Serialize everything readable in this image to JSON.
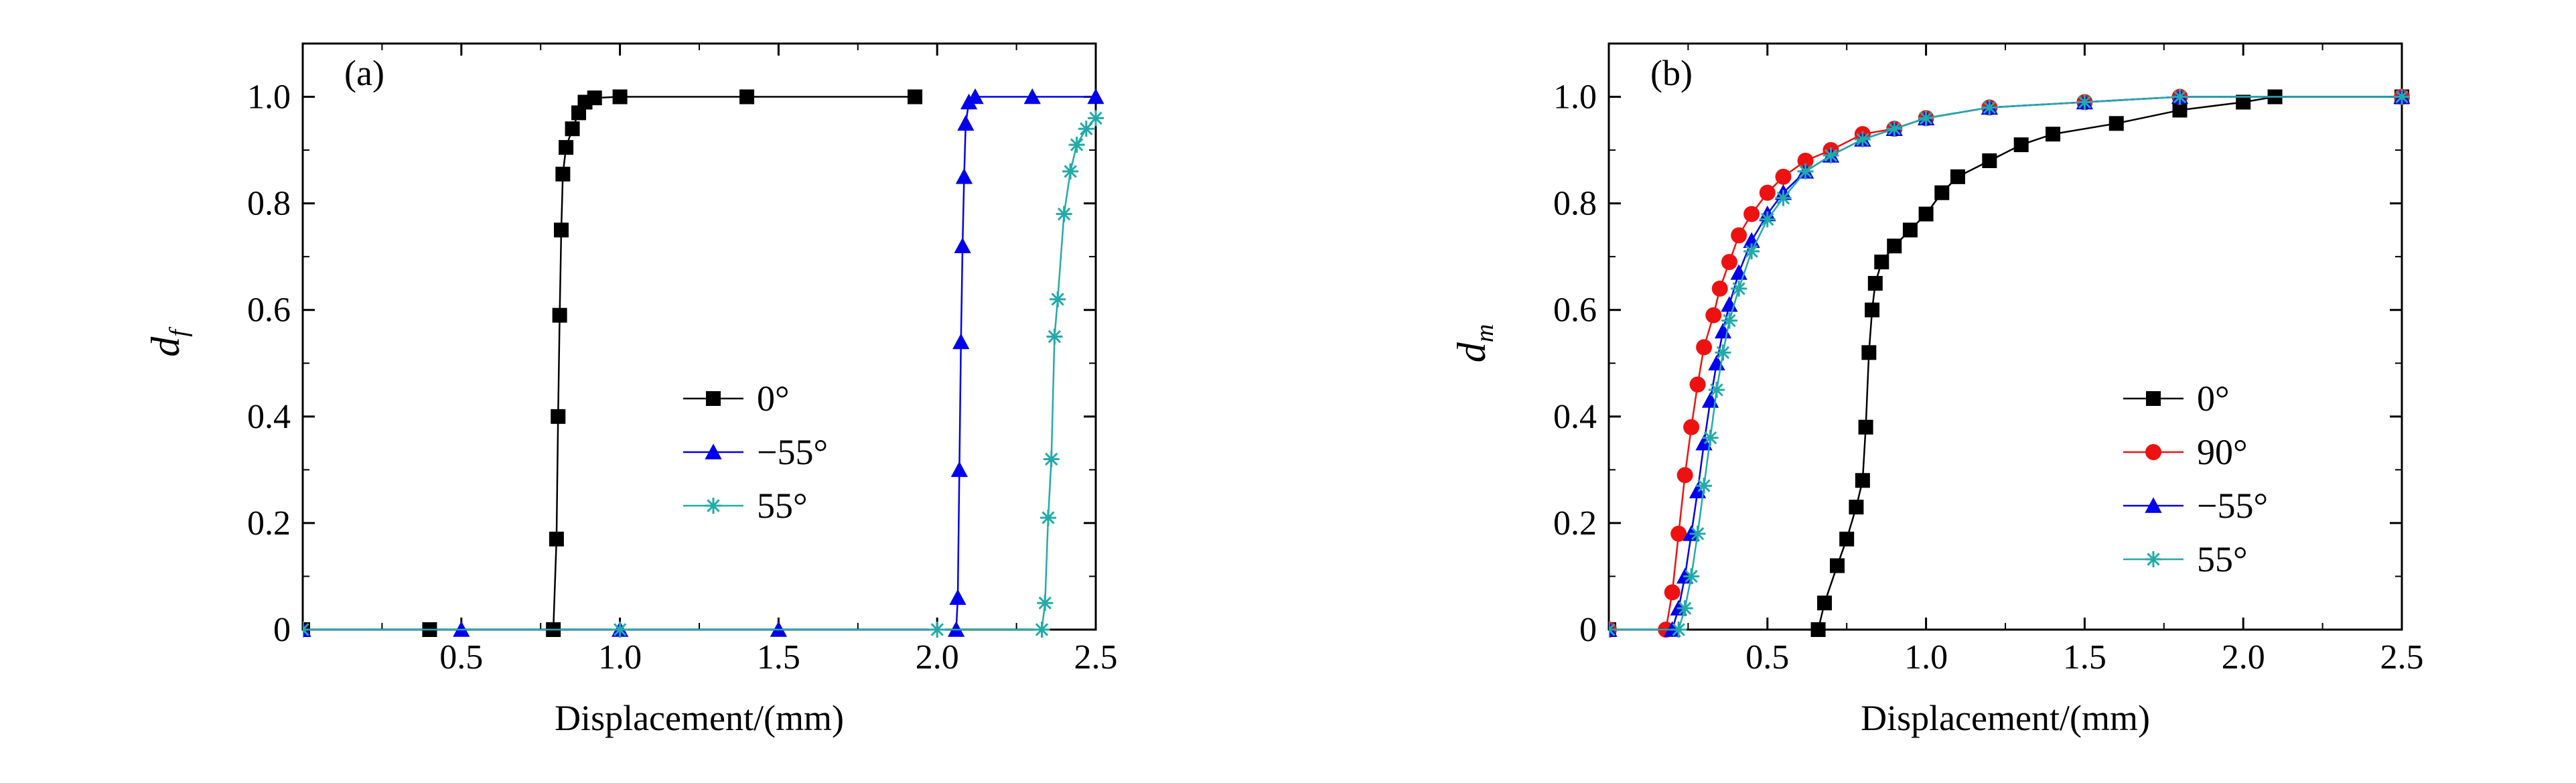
{
  "chart_data": [
    {
      "type": "line",
      "panel_label": "(a)",
      "xlabel": "Displacement/(mm)",
      "ylabel_main": "d",
      "ylabel_sub": "f",
      "xlim": [
        0,
        2.5
      ],
      "ylim": [
        0,
        1.1
      ],
      "x_ticks": [
        0.5,
        1.0,
        1.5,
        2.0,
        2.5
      ],
      "x_tick_labels": [
        "0.5",
        "1.0",
        "1.5",
        "2.0",
        "2.5"
      ],
      "y_ticks": [
        0,
        0.2,
        0.4,
        0.6,
        0.8,
        1.0
      ],
      "y_tick_labels": [
        "0",
        "0.2",
        "0.4",
        "0.6",
        "0.8",
        "1.0"
      ],
      "legend_position": "center",
      "series": [
        {
          "name": "0°",
          "color": "#000000",
          "marker": "square",
          "points": [
            [
              0.0,
              0
            ],
            [
              0.4,
              0
            ],
            [
              0.79,
              0
            ],
            [
              0.8,
              0.17
            ],
            [
              0.805,
              0.4
            ],
            [
              0.81,
              0.59
            ],
            [
              0.815,
              0.75
            ],
            [
              0.82,
              0.855
            ],
            [
              0.83,
              0.905
            ],
            [
              0.85,
              0.94
            ],
            [
              0.87,
              0.97
            ],
            [
              0.89,
              0.99
            ],
            [
              0.92,
              0.998
            ],
            [
              1.0,
              1.0
            ],
            [
              1.4,
              1.0
            ],
            [
              1.93,
              1.0
            ]
          ]
        },
        {
          "name": "−55°",
          "color": "#0000ee",
          "marker": "triangle",
          "points": [
            [
              0.0,
              0
            ],
            [
              0.5,
              0
            ],
            [
              1.0,
              0
            ],
            [
              1.5,
              0
            ],
            [
              2.06,
              0
            ],
            [
              2.065,
              0.06
            ],
            [
              2.07,
              0.3
            ],
            [
              2.075,
              0.54
            ],
            [
              2.08,
              0.72
            ],
            [
              2.085,
              0.85
            ],
            [
              2.09,
              0.95
            ],
            [
              2.1,
              0.99
            ],
            [
              2.12,
              1.0
            ],
            [
              2.3,
              1.0
            ],
            [
              2.5,
              1.0
            ]
          ]
        },
        {
          "name": "55°",
          "color": "#22aaaa",
          "marker": "star",
          "points": [
            [
              0.0,
              0
            ],
            [
              1.0,
              0
            ],
            [
              2.0,
              0
            ],
            [
              2.33,
              0
            ],
            [
              2.34,
              0.05
            ],
            [
              2.35,
              0.21
            ],
            [
              2.36,
              0.32
            ],
            [
              2.37,
              0.55
            ],
            [
              2.38,
              0.62
            ],
            [
              2.4,
              0.78
            ],
            [
              2.42,
              0.86
            ],
            [
              2.44,
              0.91
            ],
            [
              2.47,
              0.94
            ],
            [
              2.5,
              0.96
            ]
          ]
        }
      ]
    },
    {
      "type": "line",
      "panel_label": "(b)",
      "xlabel": "Displacement/(mm)",
      "ylabel_main": "d",
      "ylabel_sub": "m",
      "xlim": [
        0,
        2.5
      ],
      "ylim": [
        0,
        1.1
      ],
      "x_ticks": [
        0.5,
        1.0,
        1.5,
        2.0,
        2.5
      ],
      "x_tick_labels": [
        "0.5",
        "1.0",
        "1.5",
        "2.0",
        "2.5"
      ],
      "y_ticks": [
        0,
        0.2,
        0.4,
        0.6,
        0.8,
        1.0
      ],
      "y_tick_labels": [
        "0",
        "0.2",
        "0.4",
        "0.6",
        "0.8",
        "1.0"
      ],
      "legend_position": "center-right",
      "series": [
        {
          "name": "0°",
          "color": "#000000",
          "marker": "square",
          "points": [
            [
              0.0,
              0
            ],
            [
              0.66,
              0
            ],
            [
              0.68,
              0.05
            ],
            [
              0.72,
              0.12
            ],
            [
              0.75,
              0.17
            ],
            [
              0.78,
              0.23
            ],
            [
              0.8,
              0.28
            ],
            [
              0.81,
              0.38
            ],
            [
              0.82,
              0.52
            ],
            [
              0.83,
              0.6
            ],
            [
              0.84,
              0.65
            ],
            [
              0.86,
              0.69
            ],
            [
              0.9,
              0.72
            ],
            [
              0.95,
              0.75
            ],
            [
              1.0,
              0.78
            ],
            [
              1.05,
              0.82
            ],
            [
              1.1,
              0.85
            ],
            [
              1.2,
              0.88
            ],
            [
              1.3,
              0.91
            ],
            [
              1.4,
              0.93
            ],
            [
              1.6,
              0.95
            ],
            [
              1.8,
              0.975
            ],
            [
              2.0,
              0.99
            ],
            [
              2.1,
              1.0
            ],
            [
              2.5,
              1.0
            ]
          ]
        },
        {
          "name": "90°",
          "color": "#ee1111",
          "marker": "circle",
          "points": [
            [
              0.0,
              0
            ],
            [
              0.18,
              0
            ],
            [
              0.2,
              0.07
            ],
            [
              0.22,
              0.18
            ],
            [
              0.24,
              0.29
            ],
            [
              0.26,
              0.38
            ],
            [
              0.28,
              0.46
            ],
            [
              0.3,
              0.53
            ],
            [
              0.33,
              0.59
            ],
            [
              0.35,
              0.64
            ],
            [
              0.38,
              0.69
            ],
            [
              0.41,
              0.74
            ],
            [
              0.45,
              0.78
            ],
            [
              0.5,
              0.82
            ],
            [
              0.55,
              0.85
            ],
            [
              0.62,
              0.88
            ],
            [
              0.7,
              0.9
            ],
            [
              0.8,
              0.93
            ],
            [
              0.9,
              0.94
            ],
            [
              1.0,
              0.96
            ],
            [
              1.2,
              0.98
            ],
            [
              1.5,
              0.99
            ],
            [
              1.8,
              1.0
            ],
            [
              2.5,
              1.0
            ]
          ]
        },
        {
          "name": "−55°",
          "color": "#0000ee",
          "marker": "triangle",
          "points": [
            [
              0.0,
              0
            ],
            [
              0.2,
              0
            ],
            [
              0.22,
              0.04
            ],
            [
              0.24,
              0.1
            ],
            [
              0.26,
              0.18
            ],
            [
              0.28,
              0.26
            ],
            [
              0.3,
              0.35
            ],
            [
              0.32,
              0.43
            ],
            [
              0.34,
              0.5
            ],
            [
              0.36,
              0.56
            ],
            [
              0.38,
              0.61
            ],
            [
              0.41,
              0.67
            ],
            [
              0.45,
              0.73
            ],
            [
              0.5,
              0.78
            ],
            [
              0.55,
              0.82
            ],
            [
              0.62,
              0.86
            ],
            [
              0.7,
              0.89
            ],
            [
              0.8,
              0.92
            ],
            [
              0.9,
              0.94
            ],
            [
              1.0,
              0.96
            ],
            [
              1.2,
              0.98
            ],
            [
              1.5,
              0.99
            ],
            [
              1.8,
              1.0
            ],
            [
              2.5,
              1.0
            ]
          ]
        },
        {
          "name": "55°",
          "color": "#22aaaa",
          "marker": "star",
          "points": [
            [
              0.0,
              0
            ],
            [
              0.22,
              0
            ],
            [
              0.24,
              0.04
            ],
            [
              0.26,
              0.1
            ],
            [
              0.28,
              0.18
            ],
            [
              0.3,
              0.27
            ],
            [
              0.32,
              0.36
            ],
            [
              0.34,
              0.45
            ],
            [
              0.36,
              0.52
            ],
            [
              0.38,
              0.58
            ],
            [
              0.41,
              0.64
            ],
            [
              0.45,
              0.71
            ],
            [
              0.5,
              0.77
            ],
            [
              0.55,
              0.81
            ],
            [
              0.62,
              0.86
            ],
            [
              0.7,
              0.89
            ],
            [
              0.8,
              0.92
            ],
            [
              0.9,
              0.94
            ],
            [
              1.0,
              0.96
            ],
            [
              1.2,
              0.98
            ],
            [
              1.5,
              0.99
            ],
            [
              1.8,
              1.0
            ],
            [
              2.5,
              1.0
            ]
          ]
        }
      ]
    }
  ]
}
